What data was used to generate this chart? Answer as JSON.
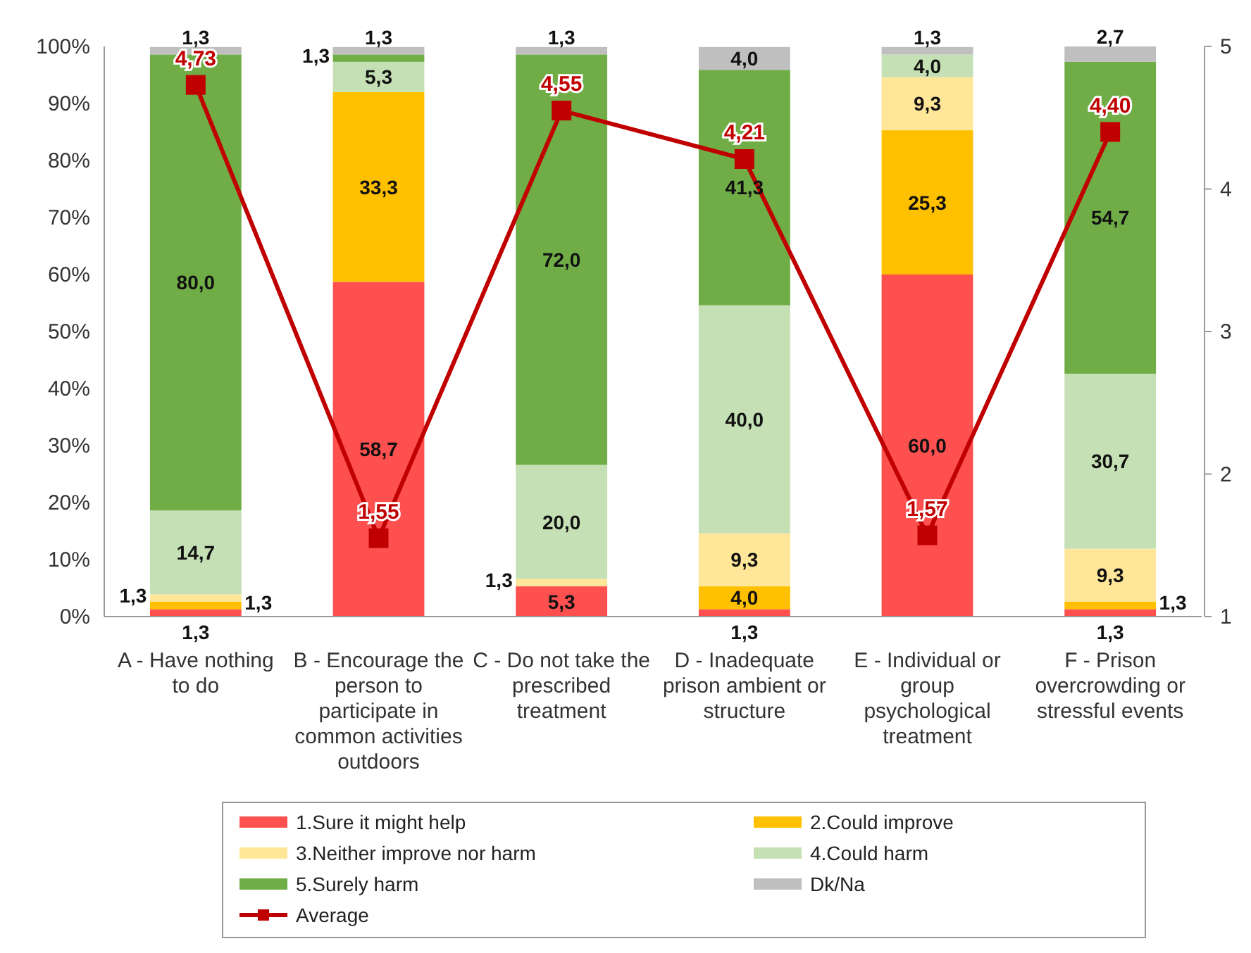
{
  "chart_data": {
    "type": "bar",
    "stacked": true,
    "categories": [
      "A - Have nothing to do",
      "B - Encourage the person to participate in common activities outdoors",
      "C - Do not take the prescribed treatment",
      "D - Inadequate prison ambient or structure",
      "E - Individual or group psychological treatment",
      "F - Prison overcrowding  or stressful events"
    ],
    "ylim": [
      0,
      100
    ],
    "yticks": [
      {
        "value": 0,
        "label": "0%"
      },
      {
        "value": 10,
        "label": "10%"
      },
      {
        "value": 20,
        "label": "20%"
      },
      {
        "value": 30,
        "label": "30%"
      },
      {
        "value": 40,
        "label": "40%"
      },
      {
        "value": 50,
        "label": "50%"
      },
      {
        "value": 60,
        "label": "60%"
      },
      {
        "value": 70,
        "label": "70%"
      },
      {
        "value": 80,
        "label": "80%"
      },
      {
        "value": 90,
        "label": "90%"
      },
      {
        "value": 100,
        "label": "100%"
      }
    ],
    "y2lim": [
      1,
      5
    ],
    "y2ticks": [
      1,
      2,
      3,
      4,
      5
    ],
    "grid": false,
    "legend": "bottom",
    "series": [
      {
        "name": "1.Sure it might help",
        "color": "#ff5050",
        "values": [
          1.3,
          58.7,
          5.3,
          1.3,
          60.0,
          1.3
        ],
        "value_labels": [
          "1,3",
          "58,7",
          "5,3",
          "1,3",
          "60,0",
          "1,3"
        ]
      },
      {
        "name": "2.Could improve",
        "color": "#ffc000",
        "values": [
          1.3,
          33.3,
          null,
          4.0,
          25.3,
          1.3
        ],
        "value_labels": [
          "1,3",
          "33,3",
          null,
          "4,0",
          "25,3",
          "1,3"
        ]
      },
      {
        "name": "3.Neither improve nor harm",
        "color": "#ffe699",
        "values": [
          1.3,
          null,
          1.3,
          9.3,
          9.3,
          9.3
        ],
        "value_labels": [
          "1,3",
          null,
          "1,3",
          "9,3",
          "9,3",
          "9,3"
        ]
      },
      {
        "name": "4.Could harm",
        "color": "#c5e0b4",
        "values": [
          14.7,
          5.3,
          20.0,
          40.0,
          4.0,
          30.7
        ],
        "value_labels": [
          "14,7",
          "5,3",
          "20,0",
          "40,0",
          "4,0",
          "30,7"
        ]
      },
      {
        "name": "5.Surely harm",
        "color": "#70ad47",
        "values": [
          80.0,
          1.3,
          72.0,
          41.3,
          null,
          54.7
        ],
        "value_labels": [
          "80,0",
          "1,3",
          "72,0",
          "41,3",
          null,
          "54,7"
        ]
      },
      {
        "name": "Dk/Na",
        "color": "#bfbfbf",
        "values": [
          1.3,
          1.3,
          1.3,
          4.0,
          1.3,
          2.7
        ],
        "value_labels": [
          "1,3",
          "1,3",
          "1,3",
          "4,0",
          "1,3",
          "2,7"
        ]
      },
      {
        "name": "Average",
        "type": "line",
        "axis": "y2",
        "marker": "square",
        "color": "#c00000",
        "values": [
          4.73,
          1.55,
          4.55,
          4.21,
          1.57,
          4.4
        ],
        "value_labels": [
          "4,73",
          "1,55",
          "4,55",
          "4,21",
          "1,57",
          "4,40"
        ]
      }
    ]
  }
}
